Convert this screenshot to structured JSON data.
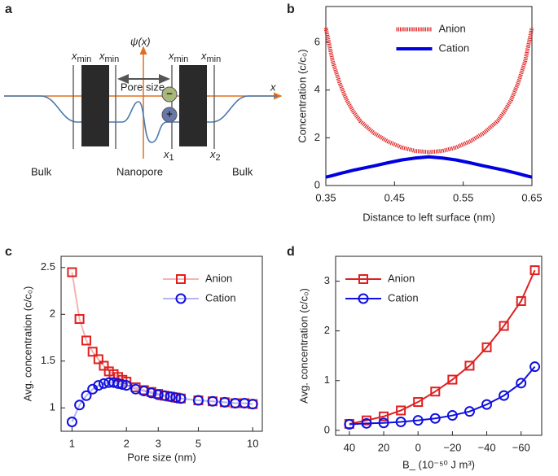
{
  "diagram": {
    "panel_label": "a",
    "xmin_labels": [
      {
        "base": "x",
        "sub": "min"
      },
      {
        "base": "x",
        "sub": "min"
      },
      {
        "base": "x",
        "sub": "min"
      },
      {
        "base": "x",
        "sub": "min"
      }
    ],
    "psi_label": "ψ(x)",
    "pore_size": "Pore size",
    "x_axis": "x",
    "x1": {
      "base": "x",
      "sub": "1"
    },
    "x2": {
      "base": "x",
      "sub": "2"
    },
    "minus": "−",
    "plus": "+",
    "regions": [
      "Bulk",
      "Nanopore",
      "Bulk"
    ]
  },
  "chart_data": [
    {
      "type": "line",
      "panel_label": "b",
      "xlabel": "Distance to left surface (nm)",
      "ylabel": "Concentration (c/c₀)",
      "x": [
        0.35,
        0.36,
        0.37,
        0.38,
        0.39,
        0.4,
        0.42,
        0.44,
        0.46,
        0.48,
        0.5,
        0.52,
        0.54,
        0.56,
        0.58,
        0.6,
        0.61,
        0.62,
        0.63,
        0.64,
        0.65
      ],
      "series": [
        {
          "name": "Anion",
          "color": "#e02020",
          "style": "dotted",
          "values": [
            6.6,
            5.2,
            4.3,
            3.6,
            3.1,
            2.7,
            2.2,
            1.85,
            1.6,
            1.45,
            1.4,
            1.45,
            1.6,
            1.85,
            2.2,
            2.7,
            3.1,
            3.6,
            4.3,
            5.2,
            6.6
          ]
        },
        {
          "name": "Cation",
          "color": "#0000e0",
          "style": "solid",
          "values": [
            0.35,
            0.42,
            0.5,
            0.57,
            0.64,
            0.7,
            0.82,
            0.95,
            1.07,
            1.15,
            1.2,
            1.15,
            1.07,
            0.95,
            0.82,
            0.7,
            0.64,
            0.57,
            0.5,
            0.42,
            0.35
          ]
        }
      ],
      "xlim": [
        0.35,
        0.65
      ],
      "xticks": [
        0.35,
        0.45,
        0.55,
        0.65
      ],
      "ylim": [
        0,
        7.5
      ],
      "yticks": [
        0,
        2,
        4,
        6
      ],
      "legend": "upper center"
    },
    {
      "type": "line",
      "panel_label": "c",
      "xlabel": "Pore size (nm)",
      "ylabel": "Avg. concentration (c/c₀)",
      "xscale": "log",
      "x": [
        1,
        1.1,
        1.2,
        1.3,
        1.4,
        1.5,
        1.6,
        1.7,
        1.8,
        1.9,
        2,
        2.25,
        2.5,
        2.75,
        3,
        3.25,
        3.5,
        3.75,
        4,
        5,
        6,
        7,
        8,
        9,
        10
      ],
      "series": [
        {
          "name": "Anion",
          "color": "#e02020",
          "line_color": "#f4b4b4",
          "marker": "square",
          "values": [
            2.45,
            1.95,
            1.72,
            1.6,
            1.52,
            1.45,
            1.39,
            1.36,
            1.33,
            1.3,
            1.28,
            1.22,
            1.19,
            1.17,
            1.15,
            1.13,
            1.12,
            1.11,
            1.1,
            1.08,
            1.07,
            1.06,
            1.05,
            1.05,
            1.04
          ]
        },
        {
          "name": "Cation",
          "color": "#1010e0",
          "line_color": "#b4b4f4",
          "marker": "circle",
          "values": [
            0.85,
            1.03,
            1.13,
            1.2,
            1.24,
            1.26,
            1.27,
            1.27,
            1.26,
            1.25,
            1.24,
            1.2,
            1.18,
            1.16,
            1.14,
            1.13,
            1.12,
            1.11,
            1.1,
            1.08,
            1.07,
            1.06,
            1.05,
            1.05,
            1.04
          ]
        }
      ],
      "xlim": [
        0.87,
        11.3
      ],
      "xticks": [
        1,
        2,
        3,
        5,
        10
      ],
      "ylim": [
        0.75,
        2.62
      ],
      "yticks": [
        1,
        1.5,
        2,
        2.5
      ],
      "legend": "upper right"
    },
    {
      "type": "line",
      "panel_label": "d",
      "xlabel": "B_ (10⁻⁵⁰ J m³)",
      "ylabel": "Avg. concentration (c/c₀)",
      "x": [
        40,
        30,
        20,
        10,
        0,
        -10,
        -20,
        -30,
        -40,
        -50,
        -60,
        -68
      ],
      "series": [
        {
          "name": "Anion",
          "color": "#e02020",
          "line_color": "#e02020",
          "marker": "square",
          "values": [
            0.13,
            0.2,
            0.28,
            0.4,
            0.57,
            0.78,
            1.02,
            1.3,
            1.67,
            2.1,
            2.6,
            3.22
          ]
        },
        {
          "name": "Cation",
          "color": "#1010e0",
          "line_color": "#1010e0",
          "marker": "circle",
          "values": [
            0.12,
            0.14,
            0.15,
            0.17,
            0.2,
            0.24,
            0.3,
            0.38,
            0.52,
            0.7,
            0.95,
            1.28
          ]
        }
      ],
      "xlim": [
        48,
        -72
      ],
      "xticks": [
        40,
        20,
        0,
        {
          "value": -20,
          "label": "−20"
        },
        {
          "value": -40,
          "label": "−40"
        },
        {
          "value": -60,
          "label": "−60"
        }
      ],
      "ylim": [
        -0.1,
        3.5
      ],
      "yticks": [
        0,
        1,
        2,
        3
      ],
      "legend": "upper left"
    }
  ]
}
